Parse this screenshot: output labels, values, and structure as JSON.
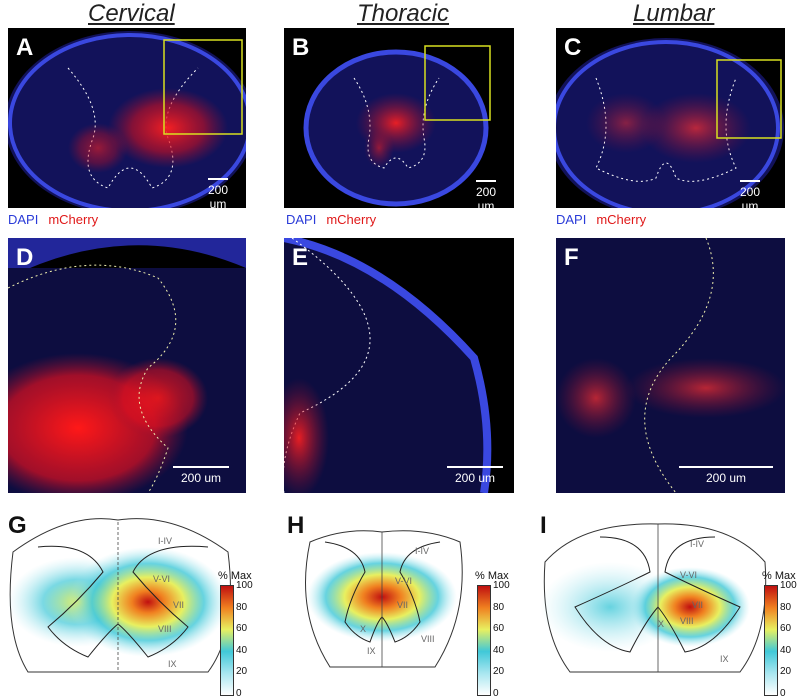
{
  "regions": {
    "cervical": "Cervical",
    "thoracic": "Thoracic",
    "lumbar": "Lumbar"
  },
  "panels": {
    "A": "A",
    "B": "B",
    "C": "C",
    "D": "D",
    "E": "E",
    "F": "F",
    "G": "G",
    "H": "H",
    "I": "I"
  },
  "scale_bar": "200 um",
  "legend": {
    "dapi": "DAPI",
    "mcherry": "mCherry"
  },
  "colorbar": {
    "title": "% Max",
    "ticks": [
      "100",
      "80",
      "60",
      "40",
      "20",
      "0"
    ]
  },
  "laminae": {
    "i_iv": "I-IV",
    "v_vi": "V-VI",
    "vii": "VII",
    "viii": "VIII",
    "ix": "IX",
    "x": "X"
  },
  "colors": {
    "dapi": "#2a3bd8",
    "mcherry": "#e01818",
    "roi_box": "#d8e020"
  }
}
